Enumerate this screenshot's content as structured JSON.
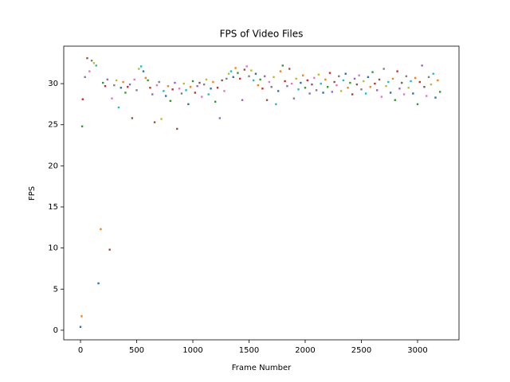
{
  "chart_data": {
    "type": "scatter",
    "title": "FPS of Video Files",
    "xlabel": "Frame Number",
    "ylabel": "FPS",
    "palette": [
      "#1f77b4",
      "#ff7f0e",
      "#2ca02c",
      "#d62728",
      "#9467bd",
      "#8c564b",
      "#e377c2",
      "#7f7f7f",
      "#bcbd22",
      "#17becf"
    ],
    "xlim": [
      -149,
      3369
    ],
    "ylim": [
      -1.17,
      34.56
    ],
    "xticks": [
      0,
      500,
      1000,
      1500,
      2000,
      2500,
      3000
    ],
    "yticks": [
      0,
      5,
      10,
      15,
      20,
      25,
      30
    ],
    "x": [
      0,
      10,
      15,
      20,
      40,
      60,
      80,
      100,
      120,
      140,
      160,
      180,
      200,
      220,
      240,
      260,
      280,
      300,
      320,
      340,
      360,
      380,
      400,
      420,
      440,
      460,
      480,
      500,
      520,
      540,
      560,
      580,
      600,
      620,
      640,
      660,
      680,
      700,
      720,
      740,
      760,
      780,
      800,
      820,
      840,
      860,
      880,
      900,
      920,
      940,
      960,
      980,
      1000,
      1020,
      1040,
      1060,
      1080,
      1100,
      1120,
      1140,
      1160,
      1180,
      1200,
      1220,
      1240,
      1260,
      1280,
      1300,
      1320,
      1340,
      1360,
      1380,
      1400,
      1420,
      1440,
      1460,
      1480,
      1500,
      1520,
      1540,
      1560,
      1580,
      1600,
      1620,
      1640,
      1660,
      1680,
      1700,
      1720,
      1740,
      1760,
      1780,
      1800,
      1820,
      1840,
      1860,
      1880,
      1900,
      1920,
      1940,
      1960,
      1980,
      2000,
      2020,
      2040,
      2060,
      2080,
      2100,
      2120,
      2140,
      2160,
      2180,
      2200,
      2220,
      2240,
      2260,
      2280,
      2300,
      2320,
      2340,
      2360,
      2380,
      2400,
      2420,
      2440,
      2460,
      2480,
      2500,
      2520,
      2540,
      2560,
      2580,
      2600,
      2620,
      2640,
      2660,
      2680,
      2700,
      2720,
      2740,
      2760,
      2780,
      2800,
      2820,
      2840,
      2860,
      2880,
      2900,
      2920,
      2940,
      2960,
      2980,
      3000,
      3020,
      3040,
      3060,
      3080,
      3100,
      3120,
      3140,
      3160,
      3180,
      3200
    ],
    "values": [
      0.4,
      1.7,
      24.8,
      28.1,
      30.8,
      33.1,
      31.5,
      32.8,
      32.5,
      32.2,
      5.7,
      12.3,
      30.1,
      29.7,
      30.5,
      9.8,
      28.2,
      29.8,
      30.4,
      27.1,
      29.5,
      30.2,
      28.9,
      29.6,
      29.9,
      25.8,
      30.5,
      29.2,
      31.8,
      32.1,
      31.5,
      30.7,
      30.4,
      29.5,
      28.7,
      25.3,
      29.8,
      30.2,
      25.7,
      29.1,
      28.5,
      29.7,
      27.9,
      29.3,
      30.1,
      24.5,
      29.4,
      28.8,
      30.0,
      29.2,
      27.5,
      29.6,
      30.3,
      28.9,
      29.7,
      30.1,
      28.4,
      29.9,
      30.5,
      28.7,
      29.4,
      30.2,
      27.8,
      29.5,
      25.8,
      30.4,
      29.1,
      30.6,
      31.2,
      31.5,
      30.8,
      31.9,
      31.3,
      30.6,
      28.0,
      31.7,
      32.1,
      30.9,
      31.6,
      30.4,
      31.2,
      29.8,
      30.5,
      29.4,
      30.9,
      28.0,
      30.2,
      29.6,
      30.8,
      27.5,
      29.1,
      31.5,
      32.2,
      30.3,
      29.7,
      31.8,
      30.0,
      28.2,
      30.6,
      29.3,
      30.1,
      31.0,
      29.5,
      30.4,
      28.8,
      29.9,
      30.7,
      29.2,
      31.1,
      30.0,
      28.9,
      30.5,
      29.6,
      31.3,
      29.0,
      30.2,
      29.8,
      30.9,
      29.1,
      30.4,
      31.2,
      29.5,
      30.1,
      28.7,
      30.6,
      29.9,
      31.0,
      29.3,
      30.3,
      28.8,
      30.8,
      29.6,
      31.4,
      30.0,
      29.2,
      30.5,
      28.4,
      31.8,
      29.7,
      30.2,
      28.9,
      30.6,
      28.0,
      31.5,
      29.4,
      30.1,
      28.7,
      30.9,
      29.5,
      30.3,
      28.8,
      30.7,
      27.5,
      30.2,
      32.2,
      29.6,
      28.5,
      30.8,
      29.9,
      31.2,
      28.3,
      30.4,
      29.0
    ]
  }
}
